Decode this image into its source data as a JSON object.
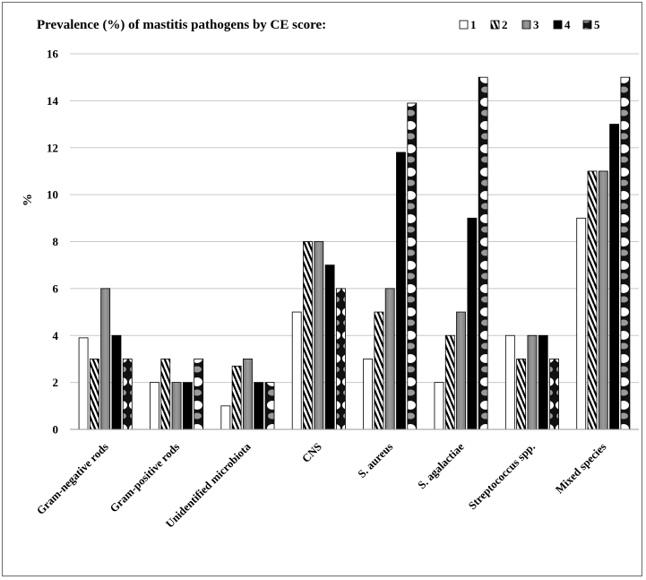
{
  "chart_data": {
    "type": "bar",
    "title": "Prevalence (%) of mastitis pathogens by CE score:",
    "ylabel": "%",
    "xlabel": "",
    "ylim": [
      0,
      16
    ],
    "yticks": [
      0,
      2,
      4,
      6,
      8,
      10,
      12,
      14,
      16
    ],
    "grid": true,
    "legend_position": "top-right",
    "categories": [
      "Gram-negative rods",
      "Gram-positive rods",
      "Unidentified microbiota",
      "CNS",
      "S. aureus",
      "S. agalactiae",
      "Streptococcus spp.",
      "Mixed species"
    ],
    "series": [
      {
        "name": "1",
        "values": [
          3.9,
          2,
          1,
          5,
          3,
          2,
          4,
          9
        ]
      },
      {
        "name": "2",
        "values": [
          3,
          3,
          2.7,
          8,
          5,
          4,
          3,
          11
        ]
      },
      {
        "name": "3",
        "values": [
          6,
          2,
          3,
          8,
          6,
          5,
          4,
          11
        ]
      },
      {
        "name": "4",
        "values": [
          4,
          2,
          2,
          7,
          11.8,
          9,
          4,
          13
        ]
      },
      {
        "name": "5",
        "values": [
          3,
          3,
          2,
          6,
          13.9,
          15,
          3,
          15
        ]
      }
    ]
  }
}
